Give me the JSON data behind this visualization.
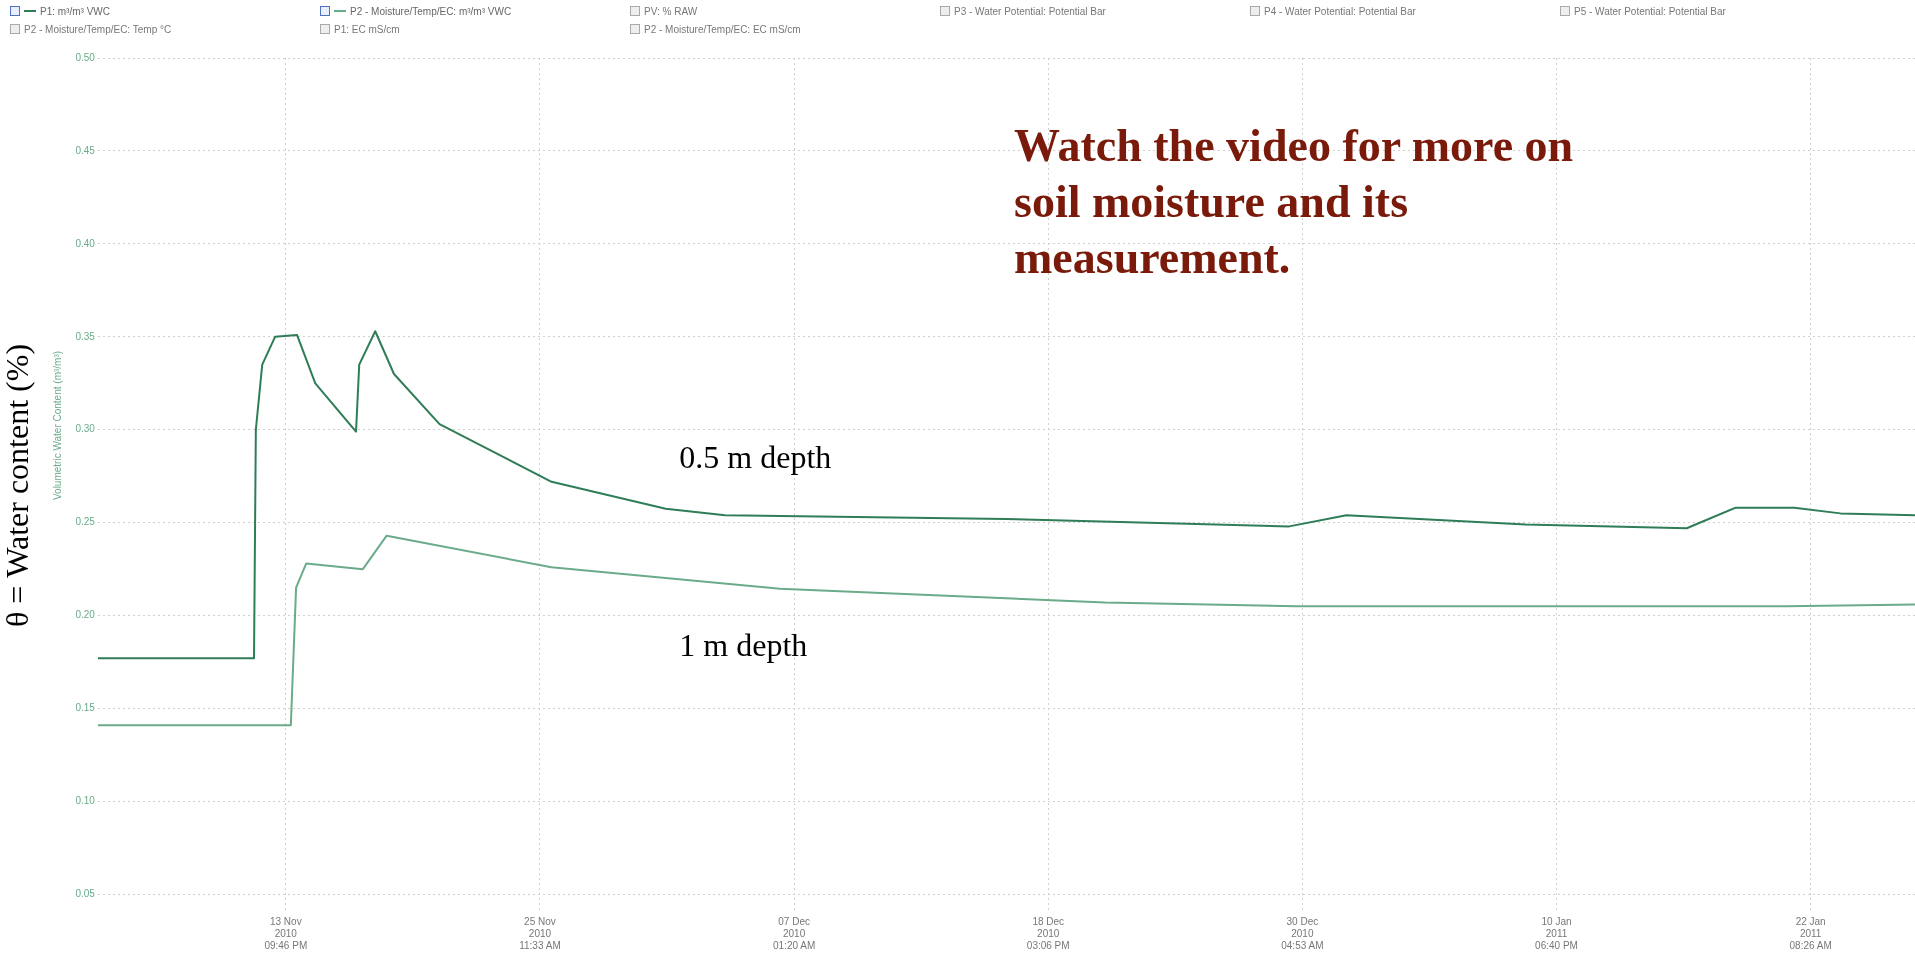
{
  "chart_data": {
    "type": "line",
    "ylabel": "θ = Water content (%)",
    "xlim": [
      "2010-11-05T08:20",
      "2011-01-27T02:30"
    ],
    "xticks": [
      {
        "value": "2010-11-13T21:46",
        "label": "13 Nov\n2010\n09:46 PM"
      },
      {
        "value": "2010-11-25T11:33",
        "label": "25 Nov\n2010\n11:33 AM"
      },
      {
        "value": "2010-12-07T01:20",
        "label": "07 Dec\n2010\n01:20 AM"
      },
      {
        "value": "2010-12-18T15:06",
        "label": "18 Dec\n2010\n03:06 PM"
      },
      {
        "value": "2010-12-30T04:53",
        "label": "30 Dec\n2010\n04:53 AM"
      },
      {
        "value": "2011-01-10T18:40",
        "label": "10 Jan\n2011\n06:40 PM"
      },
      {
        "value": "2011-01-22T08:26",
        "label": "22 Jan\n2011\n08:26 AM"
      }
    ],
    "ylim": [
      0.04,
      0.5
    ],
    "yticks": [
      {
        "value": 0.05,
        "label": "0.05"
      },
      {
        "value": 0.1,
        "label": "0.10"
      },
      {
        "value": 0.15,
        "label": "0.15"
      },
      {
        "value": 0.2,
        "label": "0.20"
      },
      {
        "value": 0.25,
        "label": "0.25"
      },
      {
        "value": 0.3,
        "label": "0.30"
      },
      {
        "value": 0.35,
        "label": "0.35"
      },
      {
        "value": 0.4,
        "label": "0.40"
      },
      {
        "value": 0.45,
        "label": "0.45"
      },
      {
        "value": 0.5,
        "label": "0.50"
      }
    ],
    "grid": true,
    "legend": "top",
    "marker": "none",
    "line_style": "solid",
    "series": [
      {
        "name": "P1: m³/m³ VWC",
        "color": "#2e7d57",
        "x": [
          "2010-11-05T08:20",
          "2010-11-12T11:00",
          "2010-11-12T13:00",
          "2010-11-12T20:00",
          "2010-11-13T10:00",
          "2010-11-14T10:00",
          "2010-11-15T06:00",
          "2010-11-17T02:30",
          "2010-11-17T06:00",
          "2010-11-17T23:30",
          "2010-11-18T20:00",
          "2010-11-20T21:46",
          "2010-11-26T00:15",
          "2010-12-01T05:00",
          "2010-12-03T21:46",
          "2010-12-16T17:00",
          "2010-12-29T14:30",
          "2011-01-01T05:00",
          "2011-01-09T09:00",
          "2011-01-16T17:00",
          "2011-01-18T22:00",
          "2011-01-21T14:30",
          "2011-01-23T17:00",
          "2011-01-27T02:30"
        ],
        "values": [
          0.177,
          0.177,
          0.3,
          0.335,
          0.35,
          0.351,
          0.325,
          0.299,
          0.335,
          0.353,
          0.33,
          0.303,
          0.272,
          0.2575,
          0.254,
          0.252,
          0.248,
          0.254,
          0.249,
          0.247,
          0.258,
          0.258,
          0.255,
          0.254
        ]
      },
      {
        "name": "P2 - Moisture/Temp/EC: m³/m³ VWC",
        "color": "#6aab8a",
        "x": [
          "2010-11-05T08:20",
          "2010-11-14T03:15",
          "2010-11-14T09:00",
          "2010-11-14T20:00",
          "2010-11-17T10:00",
          "2010-11-18T12:00",
          "2010-11-26T00:00",
          "2010-12-06T09:50",
          "2010-12-21T05:00",
          "2010-12-29T21:46",
          "2011-01-21T07:00",
          "2011-01-27T02:30"
        ],
        "values": [
          0.141,
          0.141,
          0.215,
          0.228,
          0.225,
          0.243,
          0.226,
          0.2145,
          0.207,
          0.205,
          0.205,
          0.206
        ]
      }
    ],
    "annotations": [
      "PV: % RAW",
      "P3 - Water Potential: Potential Bar",
      "P4 - Water Potential: Potential Bar",
      "P5 - Water Potential: Potential Bar",
      "P2 - Moisture/Temp/EC: Temp °C",
      "P1: EC mS/cm",
      "P2 - Moisture/Temp/EC: EC mS/cm",
      "Volumetric Water Content (m³/m³)",
      "Watch the video for more on soil moisture and its measurement.",
      "0.5 m depth",
      "1 m depth"
    ]
  }
}
